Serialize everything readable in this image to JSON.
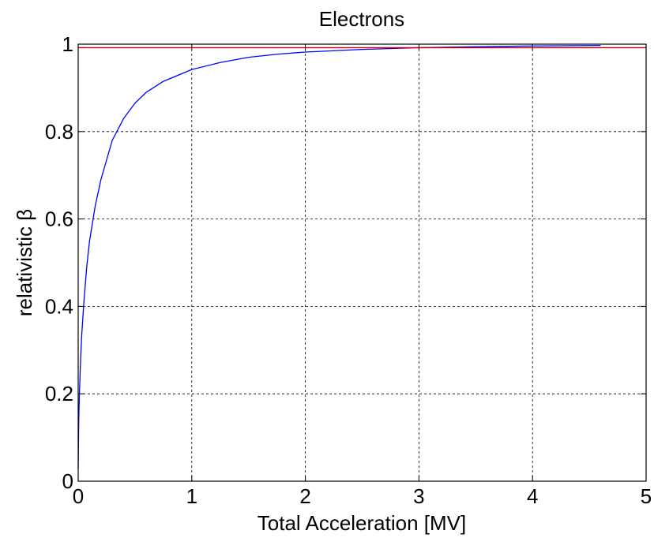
{
  "chart_data": {
    "type": "line",
    "title": "Electrons",
    "xlabel": "Total Acceleration [MV]",
    "ylabel": "relativistic β",
    "xlim": [
      0,
      5
    ],
    "ylim": [
      0,
      1
    ],
    "xticks": [
      0,
      1,
      2,
      3,
      4,
      5
    ],
    "yticks": [
      0,
      0.2,
      0.4,
      0.6,
      0.8,
      1
    ],
    "xtick_labels": [
      "0",
      "1",
      "2",
      "3",
      "4",
      "5"
    ],
    "ytick_labels": [
      "0",
      "0.2",
      "0.4",
      "0.6",
      "0.8",
      "1"
    ],
    "grid": true,
    "series": [
      {
        "color": "#0000ff",
        "x": [
          0.005,
          0.01,
          0.02,
          0.03,
          0.05,
          0.075,
          0.1,
          0.15,
          0.2,
          0.3,
          0.4,
          0.5,
          0.6,
          0.75,
          1.0,
          1.25,
          1.5,
          1.75,
          2.0,
          2.5,
          3.0,
          3.5,
          4.0,
          4.6
        ],
        "y": [
          0.14,
          0.195,
          0.27,
          0.33,
          0.41,
          0.49,
          0.55,
          0.63,
          0.69,
          0.78,
          0.83,
          0.865,
          0.89,
          0.915,
          0.942,
          0.958,
          0.97,
          0.977,
          0.982,
          0.988,
          0.992,
          0.994,
          0.996,
          0.997
        ]
      },
      {
        "color": "#cc0000",
        "x": [
          0,
          5
        ],
        "y": [
          0.992,
          0.992
        ]
      }
    ]
  }
}
